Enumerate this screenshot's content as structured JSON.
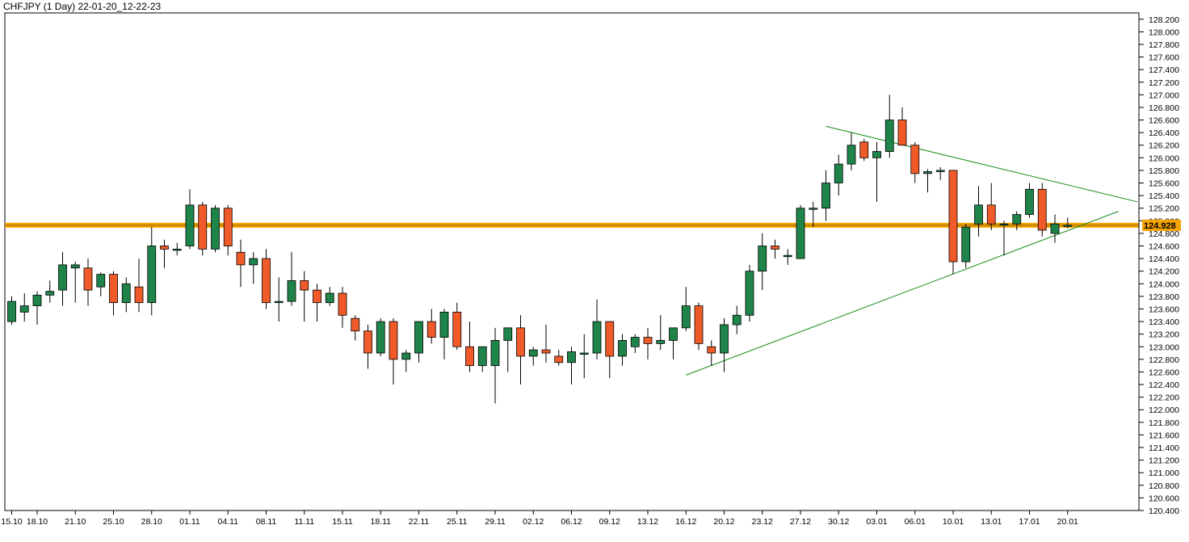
{
  "title": "CHFJPY (1 Day) 22-01-20_12-22-23",
  "colors": {
    "background": "#ffffff",
    "bull": "#1e8449",
    "bear": "#f05a28",
    "wick": "#000000",
    "level_line": "#f4a300",
    "trendline": "#1a8c1a",
    "axis": "#000000"
  },
  "chart_data": {
    "type": "candlestick",
    "title": "CHFJPY (1 Day) 22-01-20_12-22-23",
    "ylim": [
      120.4,
      128.3
    ],
    "y_tick_step": 0.2,
    "y_tick_decimals": 3,
    "y_axis_position": "right",
    "grid": false,
    "x_tick_labels": [
      "15.10",
      "18.10",
      "21.10",
      "25.10",
      "28.10",
      "01.11",
      "04.11",
      "08.11",
      "11.11",
      "15.11",
      "18.11",
      "22.11",
      "25.11",
      "29.11",
      "02.12",
      "06.12",
      "09.12",
      "13.12",
      "16.12",
      "20.12",
      "23.12",
      "27.12",
      "30.12",
      "03.01",
      "06.01",
      "10.01",
      "13.01",
      "17.01",
      "20.01"
    ],
    "x_tick_candle_index": [
      0,
      2,
      5,
      8,
      11,
      14,
      17,
      20,
      23,
      26,
      29,
      32,
      35,
      38,
      41,
      44,
      47,
      50,
      53,
      56,
      59,
      62,
      65,
      68,
      71,
      74,
      77,
      80,
      83
    ],
    "candles": [
      {
        "o": 123.4,
        "h": 123.8,
        "l": 123.35,
        "c": 123.72
      },
      {
        "o": 123.55,
        "h": 123.85,
        "l": 123.4,
        "c": 123.65
      },
      {
        "o": 123.65,
        "h": 123.88,
        "l": 123.35,
        "c": 123.82
      },
      {
        "o": 123.82,
        "h": 124.05,
        "l": 123.7,
        "c": 123.88
      },
      {
        "o": 123.9,
        "h": 124.5,
        "l": 123.65,
        "c": 124.3
      },
      {
        "o": 124.25,
        "h": 124.35,
        "l": 123.7,
        "c": 124.3
      },
      {
        "o": 124.25,
        "h": 124.4,
        "l": 123.65,
        "c": 123.9
      },
      {
        "o": 123.95,
        "h": 124.18,
        "l": 123.8,
        "c": 124.15
      },
      {
        "o": 124.15,
        "h": 124.2,
        "l": 123.5,
        "c": 123.7
      },
      {
        "o": 123.7,
        "h": 124.1,
        "l": 123.55,
        "c": 124.0
      },
      {
        "o": 123.95,
        "h": 124.4,
        "l": 123.55,
        "c": 123.7
      },
      {
        "o": 123.7,
        "h": 124.9,
        "l": 123.5,
        "c": 124.6
      },
      {
        "o": 124.6,
        "h": 124.7,
        "l": 124.25,
        "c": 124.55
      },
      {
        "o": 124.55,
        "h": 124.65,
        "l": 124.45,
        "c": 124.55
      },
      {
        "o": 124.6,
        "h": 125.5,
        "l": 124.55,
        "c": 125.25
      },
      {
        "o": 125.25,
        "h": 125.3,
        "l": 124.45,
        "c": 124.55
      },
      {
        "o": 124.55,
        "h": 125.25,
        "l": 124.5,
        "c": 125.2
      },
      {
        "o": 125.2,
        "h": 125.25,
        "l": 124.45,
        "c": 124.6
      },
      {
        "o": 124.5,
        "h": 124.7,
        "l": 123.95,
        "c": 124.3
      },
      {
        "o": 124.3,
        "h": 124.5,
        "l": 124.0,
        "c": 124.4
      },
      {
        "o": 124.4,
        "h": 124.55,
        "l": 123.6,
        "c": 123.7
      },
      {
        "o": 123.7,
        "h": 124.1,
        "l": 123.4,
        "c": 123.72
      },
      {
        "o": 123.72,
        "h": 124.5,
        "l": 123.65,
        "c": 124.05
      },
      {
        "o": 124.05,
        "h": 124.2,
        "l": 123.4,
        "c": 123.9
      },
      {
        "o": 123.9,
        "h": 124.0,
        "l": 123.4,
        "c": 123.7
      },
      {
        "o": 123.7,
        "h": 123.95,
        "l": 123.65,
        "c": 123.85
      },
      {
        "o": 123.85,
        "h": 123.95,
        "l": 123.3,
        "c": 123.5
      },
      {
        "o": 123.45,
        "h": 123.5,
        "l": 123.1,
        "c": 123.25
      },
      {
        "o": 123.25,
        "h": 123.35,
        "l": 122.65,
        "c": 122.9
      },
      {
        "o": 122.9,
        "h": 123.45,
        "l": 122.85,
        "c": 123.4
      },
      {
        "o": 123.4,
        "h": 123.45,
        "l": 122.4,
        "c": 122.8
      },
      {
        "o": 122.8,
        "h": 122.95,
        "l": 122.6,
        "c": 122.9
      },
      {
        "o": 122.9,
        "h": 123.4,
        "l": 122.75,
        "c": 123.4
      },
      {
        "o": 123.4,
        "h": 123.6,
        "l": 123.05,
        "c": 123.15
      },
      {
        "o": 123.15,
        "h": 123.6,
        "l": 122.8,
        "c": 123.55
      },
      {
        "o": 123.55,
        "h": 123.7,
        "l": 122.95,
        "c": 123.0
      },
      {
        "o": 123.0,
        "h": 123.4,
        "l": 122.6,
        "c": 122.7
      },
      {
        "o": 122.7,
        "h": 123.0,
        "l": 122.6,
        "c": 123.0
      },
      {
        "o": 122.7,
        "h": 123.3,
        "l": 122.1,
        "c": 123.1
      },
      {
        "o": 123.1,
        "h": 123.3,
        "l": 122.6,
        "c": 123.3
      },
      {
        "o": 123.3,
        "h": 123.5,
        "l": 122.4,
        "c": 122.85
      },
      {
        "o": 122.85,
        "h": 123.0,
        "l": 122.7,
        "c": 122.95
      },
      {
        "o": 122.95,
        "h": 123.35,
        "l": 122.75,
        "c": 122.9
      },
      {
        "o": 122.85,
        "h": 122.95,
        "l": 122.7,
        "c": 122.75
      },
      {
        "o": 122.75,
        "h": 123.0,
        "l": 122.4,
        "c": 122.92
      },
      {
        "o": 122.9,
        "h": 123.2,
        "l": 122.5,
        "c": 122.9
      },
      {
        "o": 122.9,
        "h": 123.75,
        "l": 122.8,
        "c": 123.4
      },
      {
        "o": 123.4,
        "h": 123.4,
        "l": 122.5,
        "c": 122.85
      },
      {
        "o": 122.85,
        "h": 123.2,
        "l": 122.7,
        "c": 123.1
      },
      {
        "o": 123.0,
        "h": 123.2,
        "l": 122.9,
        "c": 123.15
      },
      {
        "o": 123.15,
        "h": 123.3,
        "l": 122.8,
        "c": 123.05
      },
      {
        "o": 123.05,
        "h": 123.5,
        "l": 122.95,
        "c": 123.1
      },
      {
        "o": 123.1,
        "h": 123.3,
        "l": 122.8,
        "c": 123.3
      },
      {
        "o": 123.3,
        "h": 123.95,
        "l": 123.25,
        "c": 123.65
      },
      {
        "o": 123.65,
        "h": 123.7,
        "l": 122.95,
        "c": 123.05
      },
      {
        "o": 123.0,
        "h": 123.1,
        "l": 122.7,
        "c": 122.9
      },
      {
        "o": 122.9,
        "h": 123.45,
        "l": 122.6,
        "c": 123.35
      },
      {
        "o": 123.35,
        "h": 123.65,
        "l": 123.2,
        "c": 123.5
      },
      {
        "o": 123.5,
        "h": 124.3,
        "l": 123.4,
        "c": 124.2
      },
      {
        "o": 124.2,
        "h": 124.8,
        "l": 123.9,
        "c": 124.6
      },
      {
        "o": 124.6,
        "h": 124.7,
        "l": 124.4,
        "c": 124.55
      },
      {
        "o": 124.45,
        "h": 124.55,
        "l": 124.3,
        "c": 124.45
      },
      {
        "o": 124.4,
        "h": 125.25,
        "l": 124.4,
        "c": 125.2
      },
      {
        "o": 125.2,
        "h": 125.3,
        "l": 124.9,
        "c": 125.2
      },
      {
        "o": 125.2,
        "h": 125.8,
        "l": 125.0,
        "c": 125.6
      },
      {
        "o": 125.6,
        "h": 126.05,
        "l": 125.4,
        "c": 125.9
      },
      {
        "o": 125.9,
        "h": 126.4,
        "l": 125.8,
        "c": 126.2
      },
      {
        "o": 126.25,
        "h": 126.3,
        "l": 125.95,
        "c": 126.0
      },
      {
        "o": 126.0,
        "h": 126.25,
        "l": 125.3,
        "c": 126.1
      },
      {
        "o": 126.1,
        "h": 127.0,
        "l": 126.0,
        "c": 126.6
      },
      {
        "o": 126.6,
        "h": 126.8,
        "l": 126.2,
        "c": 126.2
      },
      {
        "o": 126.2,
        "h": 126.25,
        "l": 125.6,
        "c": 125.75
      },
      {
        "o": 125.75,
        "h": 125.82,
        "l": 125.45,
        "c": 125.78
      },
      {
        "o": 125.8,
        "h": 125.85,
        "l": 125.65,
        "c": 125.8
      },
      {
        "o": 125.8,
        "h": 125.8,
        "l": 124.15,
        "c": 124.35
      },
      {
        "o": 124.35,
        "h": 124.95,
        "l": 124.25,
        "c": 124.9
      },
      {
        "o": 124.95,
        "h": 125.55,
        "l": 124.75,
        "c": 125.25
      },
      {
        "o": 125.25,
        "h": 125.6,
        "l": 124.85,
        "c": 124.95
      },
      {
        "o": 124.95,
        "h": 125.0,
        "l": 124.45,
        "c": 124.95
      },
      {
        "o": 124.95,
        "h": 125.15,
        "l": 124.85,
        "c": 125.1
      },
      {
        "o": 125.1,
        "h": 125.6,
        "l": 125.05,
        "c": 125.5
      },
      {
        "o": 125.5,
        "h": 125.6,
        "l": 124.75,
        "c": 124.85
      },
      {
        "o": 124.8,
        "h": 125.1,
        "l": 124.65,
        "c": 124.95
      },
      {
        "o": 124.93,
        "h": 125.05,
        "l": 124.88,
        "c": 124.93
      }
    ],
    "horizontal_line": {
      "value": 124.928,
      "label": "124.928"
    },
    "trendlines": [
      {
        "from": {
          "candle": 53.0,
          "price": 122.55
        },
        "to": {
          "candle": 87.0,
          "price": 125.15
        }
      },
      {
        "from": {
          "candle": 64.0,
          "price": 126.5
        },
        "to": {
          "candle": 88.5,
          "price": 125.3
        }
      }
    ]
  }
}
